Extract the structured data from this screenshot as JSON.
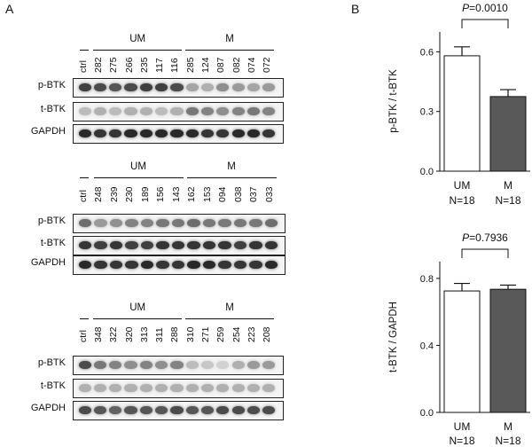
{
  "panels": {
    "a_letter": "A",
    "b_letter": "B"
  },
  "blots": [
    {
      "ctrl_label": "ctrl",
      "groups": [
        {
          "name": "UM",
          "lanes": [
            "282",
            "275",
            "266",
            "235",
            "117",
            "116"
          ]
        },
        {
          "name": "M",
          "lanes": [
            "285",
            "124",
            "087",
            "082",
            "074",
            "072"
          ]
        }
      ],
      "rows": [
        {
          "label": "p-BTK",
          "intensity": [
            0.85,
            0.8,
            0.75,
            0.8,
            0.85,
            0.85,
            0.8,
            0.4,
            0.35,
            0.5,
            0.45,
            0.4,
            0.45
          ]
        },
        {
          "label": "t-BTK",
          "intensity": [
            0.3,
            0.35,
            0.3,
            0.35,
            0.35,
            0.3,
            0.35,
            0.6,
            0.55,
            0.5,
            0.55,
            0.6,
            0.55
          ]
        },
        {
          "label": "GAPDH",
          "intensity": [
            0.95,
            0.9,
            0.9,
            0.95,
            0.95,
            0.95,
            0.95,
            0.95,
            0.9,
            0.9,
            0.95,
            0.95,
            0.9
          ]
        }
      ]
    },
    {
      "ctrl_label": "ctrl",
      "groups": [
        {
          "name": "UM",
          "lanes": [
            "248",
            "239",
            "230",
            "189",
            "156",
            "143"
          ]
        },
        {
          "name": "M",
          "lanes": [
            "162",
            "153",
            "094",
            "038",
            "037",
            "033"
          ]
        }
      ],
      "rows": [
        {
          "label": "p-BTK",
          "intensity": [
            0.65,
            0.45,
            0.5,
            0.55,
            0.55,
            0.6,
            0.6,
            0.65,
            0.6,
            0.6,
            0.6,
            0.6,
            0.65
          ]
        },
        {
          "label": "t-BTK",
          "intensity": [
            0.9,
            0.85,
            0.9,
            0.85,
            0.85,
            0.9,
            0.9,
            0.9,
            0.9,
            0.9,
            0.85,
            0.9,
            0.9
          ]
        },
        {
          "label": "GAPDH",
          "intensity": [
            0.95,
            0.9,
            0.9,
            0.9,
            0.95,
            0.9,
            0.9,
            0.95,
            0.95,
            0.9,
            0.9,
            0.9,
            0.95
          ]
        }
      ]
    },
    {
      "ctrl_label": "ctrl",
      "groups": [
        {
          "name": "UM",
          "lanes": [
            "348",
            "322",
            "320",
            "313",
            "311",
            "288"
          ]
        },
        {
          "name": "M",
          "lanes": [
            "310",
            "271",
            "259",
            "254",
            "223",
            "208"
          ]
        }
      ],
      "rows": [
        {
          "label": "p-BTK",
          "intensity": [
            0.8,
            0.6,
            0.55,
            0.5,
            0.55,
            0.5,
            0.55,
            0.3,
            0.25,
            0.2,
            0.35,
            0.45,
            0.45
          ]
        },
        {
          "label": "t-BTK",
          "intensity": [
            0.35,
            0.35,
            0.35,
            0.35,
            0.35,
            0.35,
            0.35,
            0.35,
            0.35,
            0.35,
            0.35,
            0.35,
            0.35
          ]
        },
        {
          "label": "GAPDH",
          "intensity": [
            0.8,
            0.75,
            0.7,
            0.75,
            0.75,
            0.75,
            0.8,
            0.75,
            0.75,
            0.8,
            0.8,
            0.8,
            0.8
          ]
        }
      ]
    }
  ],
  "chart_data": [
    {
      "type": "bar",
      "categories": [
        "UM",
        "M"
      ],
      "n_labels": [
        "N=18",
        "N=18"
      ],
      "values": [
        0.58,
        0.375
      ],
      "errors": [
        0.045,
        0.035
      ],
      "bar_colors": [
        "#ffffff",
        "#595959"
      ],
      "ylabel": "p-BTK / t-BTK",
      "ylim": [
        0,
        0.7
      ],
      "yticks": [
        "0.0",
        "0.3",
        "0.6"
      ],
      "ytick_values": [
        0,
        0.3,
        0.6
      ],
      "significance": "P=0.0010",
      "grid": false
    },
    {
      "type": "bar",
      "categories": [
        "UM",
        "M"
      ],
      "n_labels": [
        "N=18",
        "N=18"
      ],
      "values": [
        0.725,
        0.735
      ],
      "errors": [
        0.045,
        0.025
      ],
      "bar_colors": [
        "#ffffff",
        "#595959"
      ],
      "ylabel": "t-BTK / GAPDH",
      "ylim": [
        0,
        0.9
      ],
      "yticks": [
        "0.0",
        "0.4",
        "0.8"
      ],
      "ytick_values": [
        0,
        0.4,
        0.8
      ],
      "significance": "P=0.7936",
      "grid": false
    }
  ]
}
